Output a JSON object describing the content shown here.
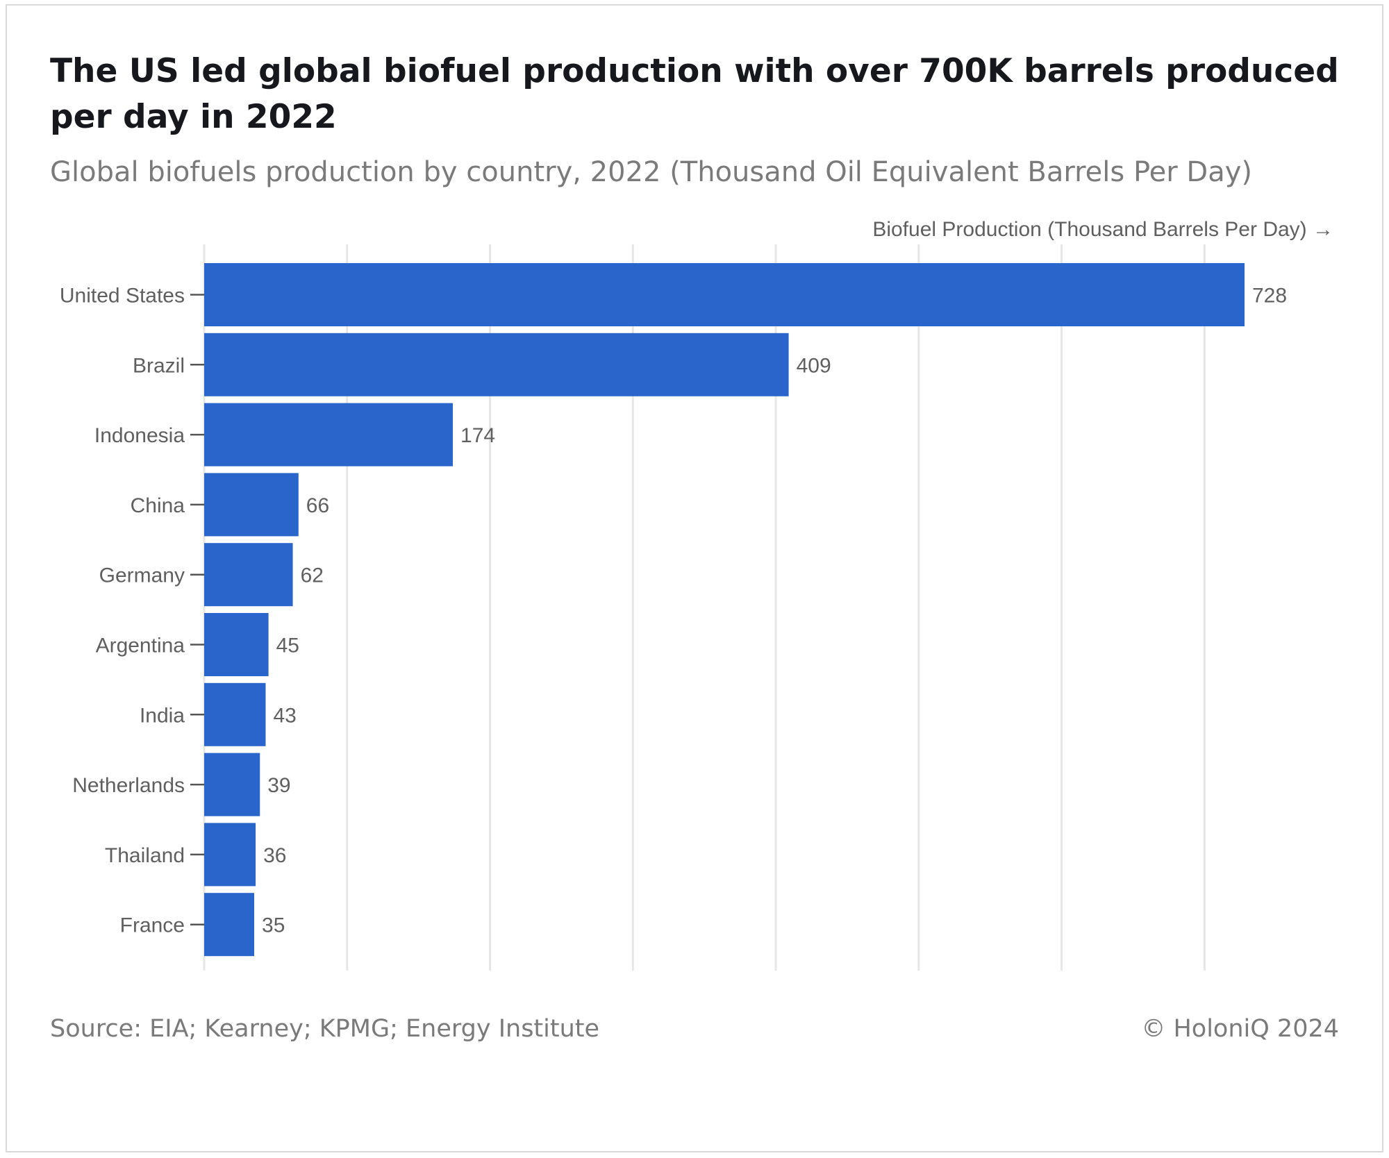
{
  "title": "The US led global biofuel production with over 700K barrels produced per day in 2022",
  "subtitle": "Global biofuels production by country, 2022 (Thousand Oil Equivalent Barrels Per Day)",
  "source": "Source: EIA; Kearney; KPMG; Energy Institute",
  "copyright": "© HoloniQ 2024",
  "colors": {
    "bar": "#2a65cc",
    "grid": "#e6e6e6"
  },
  "chart_data": {
    "type": "bar",
    "orientation": "horizontal",
    "xlabel": "Biofuel Production (Thousand Barrels Per Day) →",
    "xlim": [
      0,
      780
    ],
    "grid": true,
    "categories": [
      "United States",
      "Brazil",
      "Indonesia",
      "China",
      "Germany",
      "Argentina",
      "India",
      "Netherlands",
      "Thailand",
      "France"
    ],
    "values": [
      728,
      409,
      174,
      66,
      62,
      45,
      43,
      39,
      36,
      35
    ]
  }
}
